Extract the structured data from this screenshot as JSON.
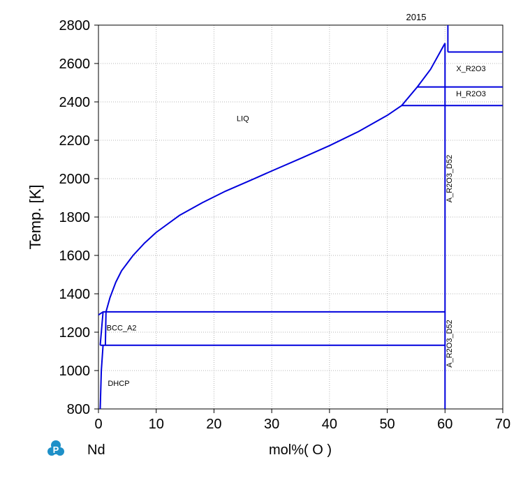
{
  "chart_data": {
    "type": "line",
    "title": "2015",
    "ylabel": "Temp. [K]",
    "xlabel": "mol%( O )",
    "element_label": "Nd",
    "xlim": [
      0,
      70
    ],
    "ylim": [
      800,
      2800
    ],
    "x_ticks": [
      0,
      10,
      20,
      30,
      40,
      50,
      60,
      70
    ],
    "y_ticks": [
      800,
      1000,
      1200,
      1400,
      1600,
      1800,
      2000,
      2200,
      2400,
      2600,
      2800
    ],
    "grid": true,
    "line_color": "#0000dd",
    "series": [
      {
        "id": "liquidus-nd-side",
        "points": [
          [
            1.3,
            1306
          ],
          [
            2,
            1380
          ],
          [
            3,
            1460
          ],
          [
            4,
            1520
          ],
          [
            6,
            1600
          ],
          [
            8,
            1665
          ],
          [
            10,
            1720
          ],
          [
            14,
            1808
          ],
          [
            18,
            1875
          ],
          [
            22,
            1935
          ],
          [
            26,
            1987
          ],
          [
            30,
            2040
          ],
          [
            35,
            2105
          ],
          [
            40,
            2172
          ],
          [
            45,
            2245
          ],
          [
            50,
            2330
          ],
          [
            52.5,
            2381
          ]
        ]
      },
      {
        "id": "liquidus-oxide-side",
        "points": [
          [
            52.5,
            2381
          ],
          [
            55.2,
            2478
          ],
          [
            57.5,
            2570
          ],
          [
            60.0,
            2706
          ]
        ]
      },
      {
        "id": "monotectic-line",
        "points": [
          [
            0,
            1290
          ],
          [
            0.8,
            1306
          ],
          [
            60,
            1306
          ]
        ]
      },
      {
        "id": "eutectoid-line",
        "points": [
          [
            0.3,
            1132
          ],
          [
            60,
            1132
          ]
        ]
      },
      {
        "id": "bcc-solvus-left",
        "points": [
          [
            0.3,
            1132
          ],
          [
            0.8,
            1306
          ]
        ]
      },
      {
        "id": "bcc-solvus-right",
        "points": [
          [
            1.2,
            1132
          ],
          [
            1.3,
            1306
          ]
        ]
      },
      {
        "id": "dhcp-solvus",
        "points": [
          [
            0.3,
            800
          ],
          [
            0.5,
            1000
          ],
          [
            0.8,
            1132
          ]
        ]
      },
      {
        "id": "oxide-left-boundary",
        "points": [
          [
            60,
            800
          ],
          [
            60,
            2706
          ]
        ]
      },
      {
        "id": "oxide-right-boundary",
        "points": [
          [
            60.5,
            2660
          ],
          [
            60.5,
            2800
          ]
        ]
      },
      {
        "id": "x-phase-top",
        "points": [
          [
            60.5,
            2660
          ],
          [
            70,
            2660
          ]
        ]
      },
      {
        "id": "h-x-transition",
        "points": [
          [
            55.2,
            2478
          ],
          [
            70,
            2478
          ]
        ]
      },
      {
        "id": "a-h-transition",
        "points": [
          [
            52.5,
            2381
          ],
          [
            70,
            2381
          ]
        ]
      }
    ],
    "annotations": [
      {
        "text": "LIQ",
        "x": 25,
        "y": 2300,
        "rotate": false
      },
      {
        "text": "BCC_A2",
        "x": 4,
        "y": 1210,
        "rotate": false
      },
      {
        "text": "DHCP",
        "x": 3.5,
        "y": 920,
        "rotate": false
      },
      {
        "text": "X_R2O3",
        "x": 64.5,
        "y": 2560,
        "rotate": false
      },
      {
        "text": "H_R2O3",
        "x": 64.5,
        "y": 2430,
        "rotate": false
      },
      {
        "text": "A_R2O3_D52",
        "x": 61.2,
        "y": 2000,
        "rotate": true
      },
      {
        "text": "A_R2O3_D52",
        "x": 61.2,
        "y": 1140,
        "rotate": true
      }
    ]
  }
}
